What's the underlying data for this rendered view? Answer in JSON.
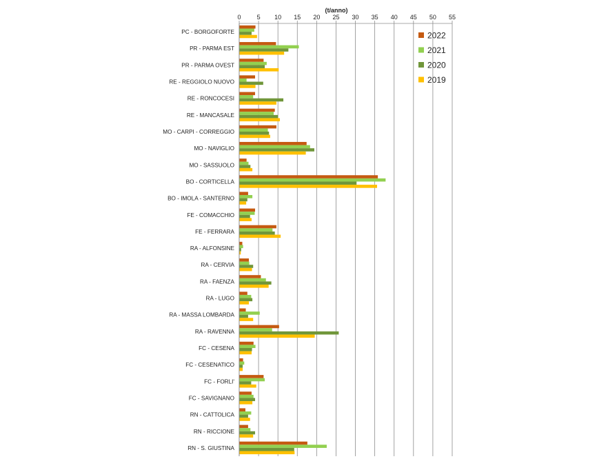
{
  "chart_data": {
    "type": "bar",
    "orientation": "horizontal",
    "title": "",
    "xlabel": "(t/anno)",
    "ylabel": "",
    "xlim": [
      0,
      55
    ],
    "x_ticks": [
      0,
      5,
      10,
      15,
      20,
      25,
      30,
      35,
      40,
      45,
      50,
      55
    ],
    "x_axis_position": "top",
    "grid": "vertical",
    "legend_position": "right",
    "categories": [
      "PC - BORGOFORTE",
      "PR - PARMA EST",
      "PR - PARMA OVEST",
      "RE - REGGIOLO NUOVO",
      "RE - RONCOCESI",
      "RE - MANCASALE",
      "MO - CARPI - CORREGGIO",
      "MO - NAVIGLIO",
      "MO - SASSUOLO",
      "BO - CORTICELLA",
      "BO - IMOLA - SANTERNO",
      "FE - COMACCHIO",
      "FE - FERRARA",
      "RA - ALFONSINE",
      "RA - CERVIA",
      "RA - FAENZA",
      "RA - LUGO",
      "RA - MASSA LOMBARDA",
      "RA - RAVENNA",
      "FC - CESENA",
      "FC - CESENATICO",
      "FC - FORLI'",
      "FC - SAVIGNANO",
      "RN - CATTOLICA",
      "RN - RICCIONE",
      "RN - S. GIUSTINA"
    ],
    "series": [
      {
        "name": "2022",
        "color": "#c55a11",
        "values": [
          4.2,
          9.5,
          6.3,
          4.1,
          4.1,
          9.2,
          9.6,
          17.4,
          1.9,
          35.8,
          2.3,
          4.1,
          9.6,
          0.8,
          2.5,
          5.6,
          2.1,
          1.7,
          10.3,
          3.7,
          1.0,
          6.3,
          3.2,
          1.6,
          2.3,
          17.6
        ]
      },
      {
        "name": "2021",
        "color": "#92d050",
        "values": [
          3.9,
          15.4,
          7.1,
          1.9,
          3.6,
          8.9,
          7.4,
          18.3,
          2.4,
          37.8,
          3.4,
          4.0,
          8.6,
          1.0,
          2.6,
          6.9,
          3.1,
          5.3,
          8.5,
          4.2,
          1.3,
          6.6,
          3.7,
          3.1,
          2.9,
          22.6
        ]
      },
      {
        "name": "2020",
        "color": "#70963a",
        "values": [
          3.2,
          12.7,
          6.6,
          6.2,
          11.4,
          10.0,
          7.7,
          19.4,
          2.9,
          30.3,
          2.1,
          2.8,
          9.2,
          0.5,
          3.6,
          8.3,
          3.4,
          2.3,
          25.7,
          3.3,
          0.9,
          3.1,
          4.1,
          2.3,
          4.1,
          14.2
        ]
      },
      {
        "name": "2019",
        "color": "#ffc000",
        "values": [
          4.6,
          11.6,
          10.2,
          4.2,
          9.6,
          10.5,
          8.0,
          17.2,
          3.4,
          35.6,
          1.8,
          3.2,
          10.7,
          0.4,
          3.3,
          7.6,
          2.5,
          3.6,
          19.5,
          3.2,
          0.9,
          4.4,
          3.4,
          2.8,
          3.6,
          14.3
        ]
      }
    ]
  }
}
